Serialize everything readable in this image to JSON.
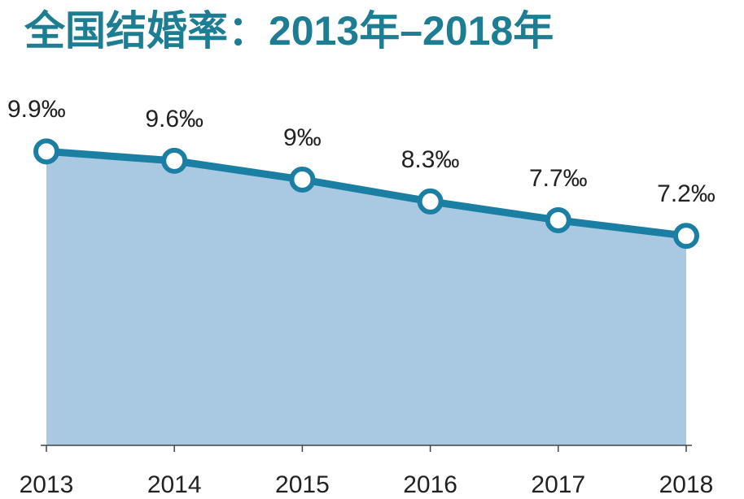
{
  "chart_data": {
    "type": "area",
    "title": "全国结婚率：2013年–2018年",
    "categories": [
      "2013",
      "2014",
      "2015",
      "2016",
      "2017",
      "2018"
    ],
    "values": [
      9.9,
      9.6,
      9,
      8.3,
      7.7,
      7.2
    ],
    "value_labels": [
      "9.9‰",
      "9.6‰",
      "9‰",
      "8.3‰",
      "7.7‰",
      "7.2‰"
    ],
    "color": "#1b7fa3",
    "ylim": [
      0.5,
      11
    ]
  }
}
